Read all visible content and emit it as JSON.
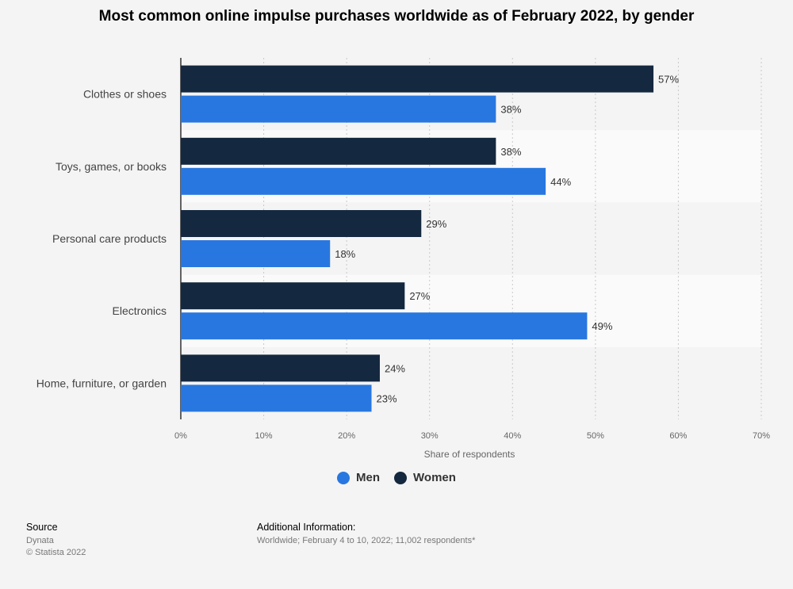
{
  "title": "Most common online impulse purchases worldwide as of February 2022, by gender",
  "chart_data": {
    "type": "bar",
    "orientation": "horizontal",
    "title": "Most common online impulse purchases worldwide as of February 2022, by gender",
    "categories": [
      "Clothes or shoes",
      "Toys, games, or books",
      "Personal care products",
      "Electronics",
      "Home, furniture, or garden"
    ],
    "series": [
      {
        "name": "Women",
        "color": "#14283f",
        "values": [
          57,
          38,
          29,
          27,
          24
        ]
      },
      {
        "name": "Men",
        "color": "#2877e0",
        "values": [
          38,
          44,
          18,
          49,
          23
        ]
      }
    ],
    "xlabel": "Share of respondents",
    "ylabel": "",
    "xlim": [
      0,
      70
    ],
    "xticks": [
      0,
      10,
      20,
      30,
      40,
      50,
      60,
      70
    ],
    "tick_suffix": "%",
    "grid": true,
    "legend": "bottom-center"
  },
  "legend": [
    {
      "label": "Men",
      "color": "#2877e0"
    },
    {
      "label": "Women",
      "color": "#14283f"
    }
  ],
  "source": {
    "heading": "Source",
    "lines": [
      "Dynata",
      "© Statista 2022"
    ]
  },
  "additional": {
    "heading": "Additional Information:",
    "text": "Worldwide; February 4 to 10, 2022; 11,002 respondents*"
  }
}
